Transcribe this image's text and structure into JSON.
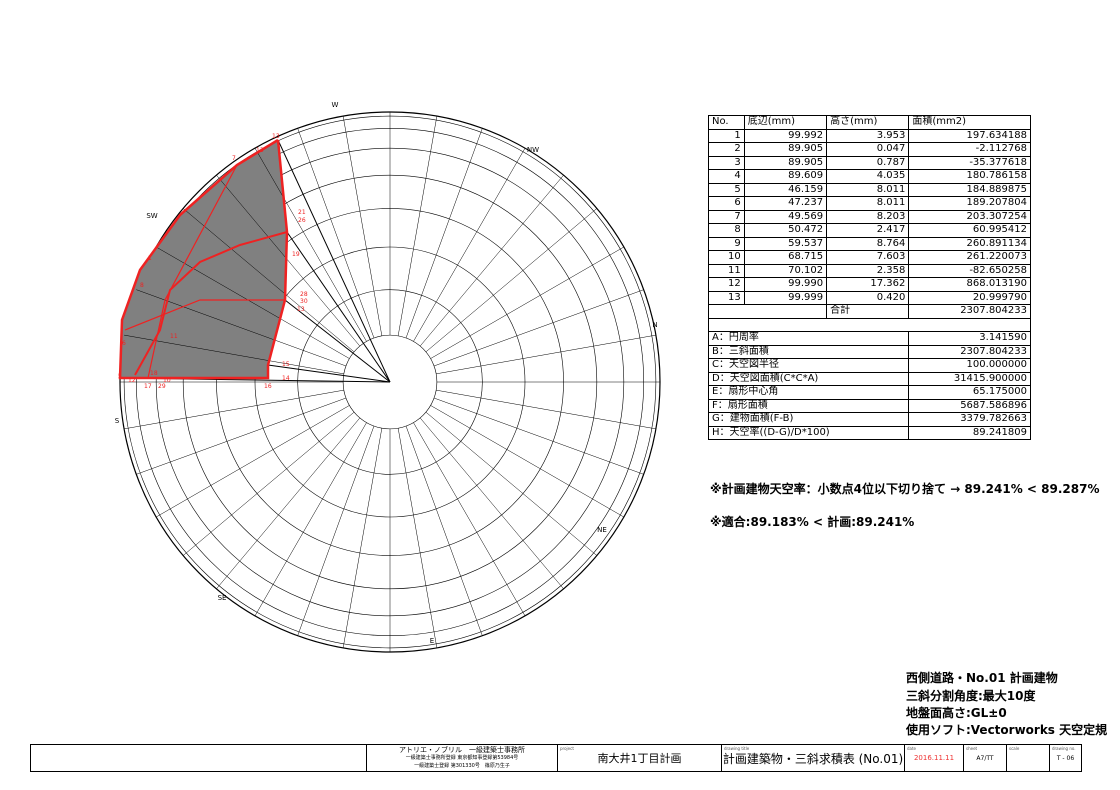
{
  "diagram": {
    "compass": [
      "W",
      "NW",
      "N",
      "NE",
      "E",
      "SE",
      "S",
      "SW"
    ],
    "point_labels": [
      "13",
      "13",
      "7",
      "21",
      "26",
      "19",
      "1",
      "8",
      "28",
      "30",
      "13",
      "6",
      "15",
      "14",
      "5",
      "12",
      "17",
      "29",
      "18",
      "10",
      "11",
      "16"
    ]
  },
  "table": {
    "header": [
      "No.",
      "底辺(mm)",
      "高さ(mm)",
      "面積(mm2)"
    ],
    "rows": [
      [
        "1",
        "99.992",
        "3.953",
        "197.634188"
      ],
      [
        "2",
        "89.905",
        "0.047",
        "-2.112768"
      ],
      [
        "3",
        "89.905",
        "0.787",
        "-35.377618"
      ],
      [
        "4",
        "89.609",
        "4.035",
        "180.786158"
      ],
      [
        "5",
        "46.159",
        "8.011",
        "184.889875"
      ],
      [
        "6",
        "47.237",
        "8.011",
        "189.207804"
      ],
      [
        "7",
        "49.569",
        "8.203",
        "203.307254"
      ],
      [
        "8",
        "50.472",
        "2.417",
        "60.995412"
      ],
      [
        "9",
        "59.537",
        "8.764",
        "260.891134"
      ],
      [
        "10",
        "68.715",
        "7.603",
        "261.220073"
      ],
      [
        "11",
        "70.102",
        "2.358",
        "-82.650258"
      ],
      [
        "12",
        "99.990",
        "17.362",
        "868.013190"
      ],
      [
        "13",
        "99.999",
        "0.420",
        "20.999790"
      ]
    ],
    "total": [
      "合計",
      "2307.804233"
    ],
    "summary": [
      [
        "A：円周率",
        "3.141590"
      ],
      [
        "B：三斜面積",
        "2307.804233"
      ],
      [
        "C：天空図半径",
        "100.000000"
      ],
      [
        "D：天空図面積(C*C*A)",
        "31415.900000"
      ],
      [
        "E：扇形中心角",
        "65.175000"
      ],
      [
        "F：扇形面積",
        "5687.586896"
      ],
      [
        "G：建物面積(F-B)",
        "3379.782663"
      ],
      [
        "H：天空率((D-G)/D*100)",
        "89.241809"
      ]
    ]
  },
  "notes": [
    "※計画建物天空率：小数点4位以下切り捨て → 89.241% < 89.287%",
    "※適合:89.183% < 計画:89.241%"
  ],
  "specs": [
    "西側道路・No.01 計画建物",
    "三斜分割角度:最大10度",
    "地盤面高さ:GL±0",
    "使用ソフト:Vectorworks 天空定規"
  ],
  "title_block": {
    "office": [
      "アトリエ・ノブリル　一級建築士事務所",
      "一級建築士事務所登録 東京都知事登録第53984号",
      "一級建築士登録 第301330号　篠原乃生子"
    ],
    "captions": [
      "project",
      "drawing title",
      "date",
      "sheet",
      "scale",
      "drawing no."
    ],
    "project": "南大井1丁目計画",
    "drawing_title": "計画建築物・三斜求積表 (No.01)",
    "date": "2016.11.11",
    "sheet": "A7/TT",
    "drawing_no": "T - 06"
  }
}
